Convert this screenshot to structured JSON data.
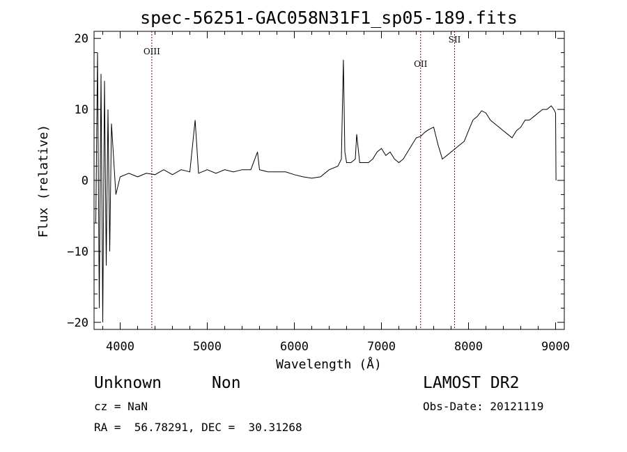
{
  "chart_data": {
    "type": "line",
    "title": "spec-56251-GAC058N31F1_sp05-189.fits",
    "xlabel": "Wavelength (Å)",
    "ylabel": "Flux (relative)",
    "xlim": [
      3700,
      9100
    ],
    "ylim": [
      -21,
      21
    ],
    "xticks": [
      4000,
      5000,
      6000,
      7000,
      8000,
      9000
    ],
    "yticks": [
      -20,
      -10,
      0,
      10,
      20
    ],
    "xtick_labels": [
      "4000",
      "5000",
      "6000",
      "7000",
      "8000",
      "9000"
    ],
    "ytick_labels": [
      "−20",
      "−10",
      "0",
      "10",
      "20"
    ],
    "grid": false,
    "line_color": "#000000",
    "series": [
      {
        "x": [
          3720,
          3740,
          3760,
          3780,
          3800,
          3820,
          3840,
          3860,
          3880,
          3900,
          3950,
          4000,
          4100,
          4200,
          4300,
          4400,
          4500,
          4600,
          4700,
          4800,
          4861,
          4900,
          5000,
          5100,
          5200,
          5300,
          5400,
          5500,
          5577,
          5600,
          5700,
          5800,
          5900,
          6000,
          6100,
          6200,
          6300,
          6400,
          6500,
          6540,
          6563,
          6580,
          6600,
          6650,
          6700,
          6716,
          6750,
          6800,
          6850,
          6900,
          6950,
          7000,
          7050,
          7100,
          7150,
          7200,
          7250,
          7300,
          7350,
          7400,
          7450,
          7500,
          7550,
          7600,
          7650,
          7700,
          7750,
          7800,
          7850,
          7900,
          7950,
          8000,
          8050,
          8100,
          8150,
          8200,
          8250,
          8300,
          8350,
          8400,
          8450,
          8500,
          8550,
          8600,
          8650,
          8700,
          8750,
          8800,
          8850,
          8900,
          8950,
          8980,
          9000,
          9005
        ],
        "y": [
          -6,
          18,
          -18,
          15,
          -20,
          14,
          -12,
          10,
          -10,
          8,
          -2,
          0.5,
          1,
          0.5,
          1,
          0.8,
          1.5,
          0.8,
          1.5,
          1.2,
          8.5,
          1,
          1.5,
          1,
          1.5,
          1.2,
          1.5,
          1.5,
          4,
          1.5,
          1.2,
          1.2,
          1.2,
          0.8,
          0.5,
          0.3,
          0.5,
          1.5,
          2,
          3,
          17,
          4,
          2.5,
          2.5,
          3,
          6.5,
          2.5,
          2.5,
          2.5,
          3,
          4,
          4.5,
          3.5,
          4,
          3,
          2.5,
          3,
          4,
          5,
          6,
          6.2,
          6.8,
          7.2,
          7.5,
          5,
          3,
          3.5,
          4,
          4.5,
          5,
          5.5,
          7,
          8.5,
          9,
          9.8,
          9.5,
          8.5,
          8,
          7.5,
          7,
          6.5,
          6,
          7,
          7.5,
          8.5,
          8.5,
          9,
          9.5,
          10,
          10,
          10.5,
          10,
          9.5,
          0
        ]
      }
    ],
    "markers": [
      {
        "label": "OIII",
        "x": 4363
      },
      {
        "label": "OII",
        "x": 7450
      },
      {
        "label": "SII",
        "x": 7840
      }
    ],
    "marker_color": "#8b0000"
  },
  "info": {
    "object_class": "Unknown",
    "subclass": "Non",
    "survey": "LAMOST DR2",
    "cz": "cz = NaN",
    "obs_date": "Obs-Date: 20121119",
    "radec": "RA =  56.78291, DEC =  30.31268"
  }
}
